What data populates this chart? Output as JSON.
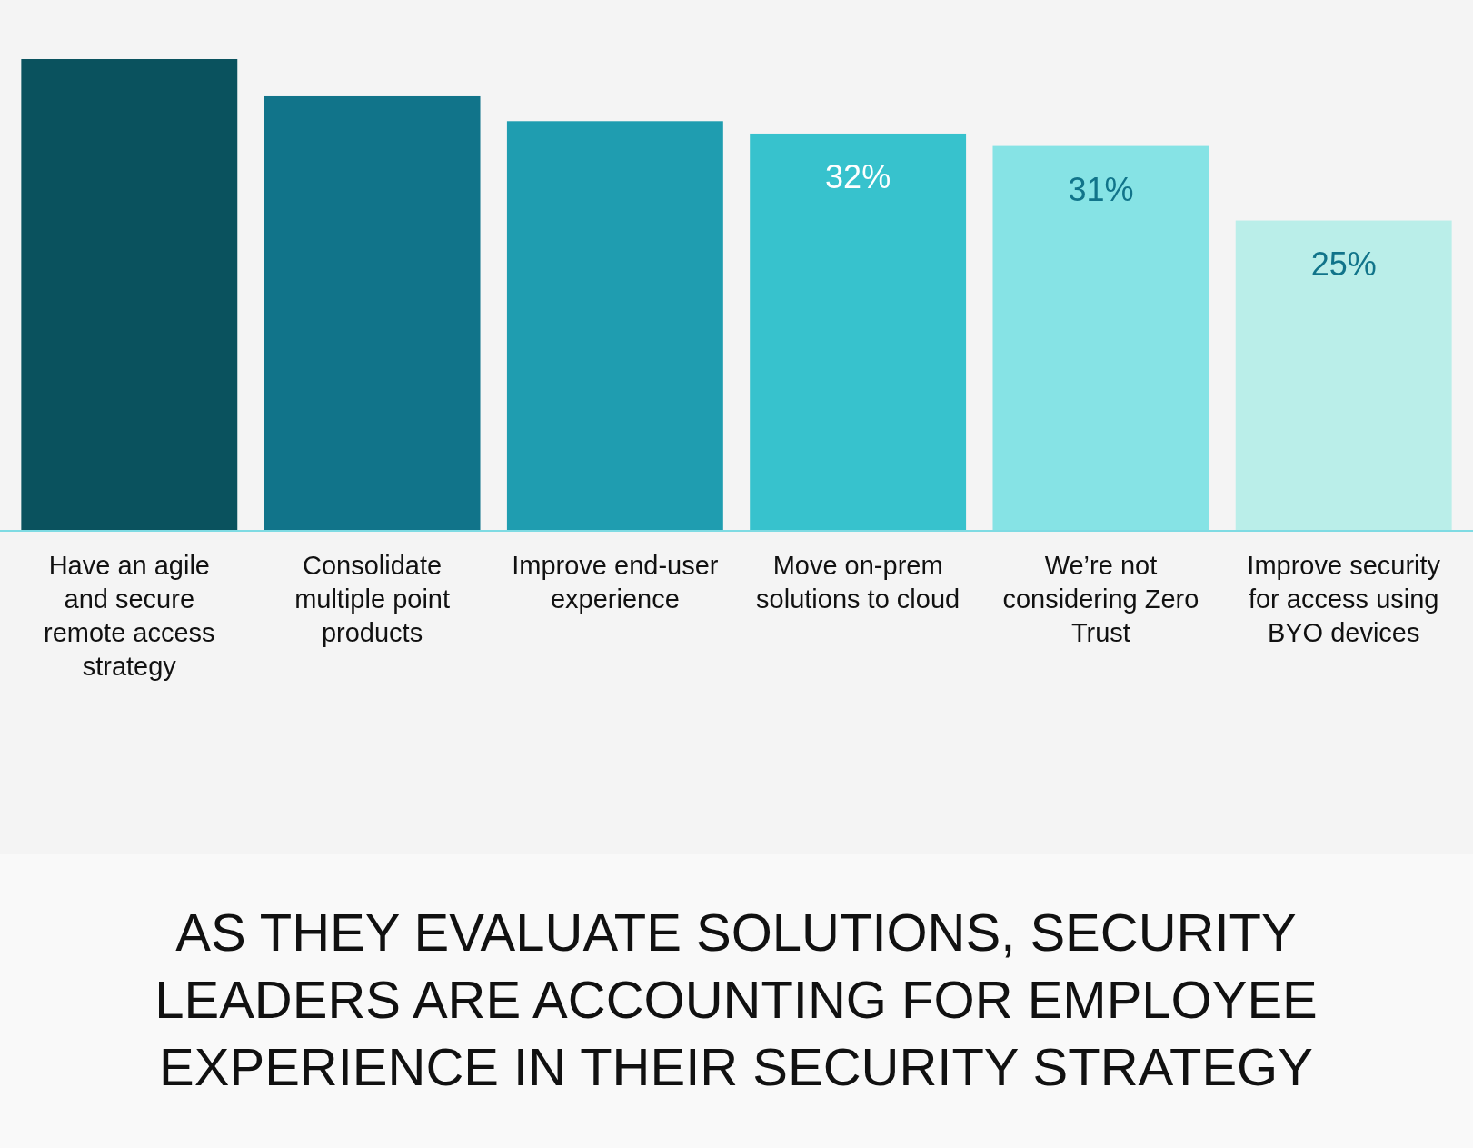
{
  "chart_data": {
    "type": "bar",
    "title": "AS THEY EVALUATE SOLUTIONS, SECURITY LEADERS ARE ACCOUNTING FOR EMPLOYEE EXPERIENCE IN THEIR SECURITY STRATEGY",
    "categories": [
      "Have an agile and secure remote access strategy",
      "Consolidate multiple point products",
      "Improve end-user experience",
      "Move on-prem solutions to cloud",
      "We’re not considering Zero Trust",
      "Improve security for access using BYO devices"
    ],
    "values": [
      38,
      35,
      33,
      32,
      31,
      25
    ],
    "value_labels": [
      null,
      null,
      null,
      "32%",
      "31%",
      "25%"
    ],
    "colors": [
      "#0a525e",
      "#11748a",
      "#1f9db0",
      "#37c2cd",
      "#86e3e5",
      "#baeee9"
    ],
    "tick_labels": "x"
  }
}
